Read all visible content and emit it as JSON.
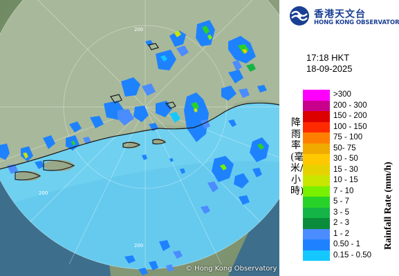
{
  "map": {
    "copyright": "© Hong Kong Observatory",
    "range_rings": [
      "200",
      "200",
      "200"
    ]
  },
  "logo": {
    "name_cn": "香港天文台",
    "name_en": "HONG KONG OBSERVATORY"
  },
  "timestamp": {
    "time": "17:18 HKT",
    "date": "18-09-2025"
  },
  "legend": {
    "title_cn": "降雨率(毫米/小時)",
    "title_en": "Rainfall Rate (mm/h)",
    "items": [
      {
        "label": ">300",
        "color": "#ff00ff"
      },
      {
        "label": "200 - 300",
        "color": "#c8008c"
      },
      {
        "label": "150 - 200",
        "color": "#dc0000"
      },
      {
        "label": "100 - 150",
        "color": "#ff2a00"
      },
      {
        "label": "75 - 100",
        "color": "#ff8000"
      },
      {
        "label": "50- 75",
        "color": "#f0aa00"
      },
      {
        "label": "30 - 50",
        "color": "#ffc800"
      },
      {
        "label": "15 - 30",
        "color": "#e6d200"
      },
      {
        "label": "10 - 15",
        "color": "#c8e600"
      },
      {
        "label": "7 - 10",
        "color": "#78f000"
      },
      {
        "label": "5 - 7",
        "color": "#28d228"
      },
      {
        "label": "3 - 5",
        "color": "#14b446"
      },
      {
        "label": "2 - 3",
        "color": "#0a8c3c"
      },
      {
        "label": "1 - 2",
        "color": "#4b8cff"
      },
      {
        "label": "0.50 - 1",
        "color": "#1e82ff"
      },
      {
        "label": "0.15 - 0.50",
        "color": "#14c8ff"
      }
    ]
  }
}
